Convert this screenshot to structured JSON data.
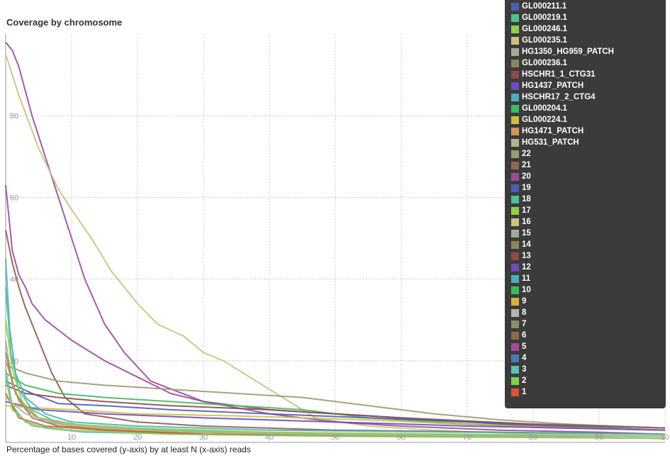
{
  "title": "Coverage by chromosome",
  "caption": "Percentage of bases covered (y-axis) by at least N (x-axis) reads",
  "chart_data": {
    "type": "line",
    "title": "Coverage by chromosome",
    "xlabel": "",
    "ylabel": "",
    "xlim": [
      0,
      100
    ],
    "ylim": [
      0,
      100
    ],
    "x_ticks": [
      "10",
      "20",
      "30",
      "40",
      "50",
      "60",
      "70",
      "80",
      "90",
      "10"
    ],
    "y_ticks": [
      "20",
      "40",
      "60",
      "80"
    ],
    "grid": true,
    "legend_position": "top-right",
    "legend": [
      {
        "label": "GL000211.1",
        "color": "#4a5fb0"
      },
      {
        "label": "GL000219.1",
        "color": "#4cc08e"
      },
      {
        "label": "GL000246.1",
        "color": "#8fd04a"
      },
      {
        "label": "GL000235.1",
        "color": "#c8c27e"
      },
      {
        "label": "HG1350_HG959_PATCH",
        "color": "#a6a89a"
      },
      {
        "label": "GL000236.1",
        "color": "#8c845e"
      },
      {
        "label": "HSCHR1_1_CTG31",
        "color": "#8d4848"
      },
      {
        "label": "HG1437_PATCH",
        "color": "#6d4cb8"
      },
      {
        "label": "HSCHR17_2_CTG4",
        "color": "#4aaebd"
      },
      {
        "label": "GL000204.1",
        "color": "#3dbb5c"
      },
      {
        "label": "GL000224.1",
        "color": "#cfbe45"
      },
      {
        "label": "HG1471_PATCH",
        "color": "#cf955a"
      },
      {
        "label": "HG531_PATCH",
        "color": "#b0b890"
      },
      {
        "label": "22",
        "color": "#9a9a72"
      },
      {
        "label": "21",
        "color": "#8d6a58"
      },
      {
        "label": "20",
        "color": "#9b4a9c"
      },
      {
        "label": "19",
        "color": "#4a5fb0"
      },
      {
        "label": "18",
        "color": "#4cc08e"
      },
      {
        "label": "17",
        "color": "#8fd04a"
      },
      {
        "label": "16",
        "color": "#c8c27e"
      },
      {
        "label": "15",
        "color": "#a6a89a"
      },
      {
        "label": "14",
        "color": "#8c845e"
      },
      {
        "label": "13",
        "color": "#8d4848"
      },
      {
        "label": "12",
        "color": "#6d4cb8"
      },
      {
        "label": "11",
        "color": "#4aaebd"
      },
      {
        "label": "10",
        "color": "#3dbb5c"
      },
      {
        "label": "9",
        "color": "#cfb53c"
      },
      {
        "label": "8",
        "color": "#b4b4a8"
      },
      {
        "label": "7",
        "color": "#8a8c6e"
      },
      {
        "label": "6",
        "color": "#8d6a48"
      },
      {
        "label": "5",
        "color": "#a34a9c"
      },
      {
        "label": "4",
        "color": "#4a7ab8"
      },
      {
        "label": "3",
        "color": "#5cc0b8"
      },
      {
        "label": "2",
        "color": "#7ed04a"
      },
      {
        "label": "1",
        "color": "#d9533c"
      }
    ],
    "series": [
      {
        "color": "#9b4a9c",
        "x": [
          0,
          1,
          2,
          4,
          6,
          8,
          10,
          12,
          15,
          18,
          22,
          30,
          40,
          50,
          60,
          70,
          80,
          100
        ],
        "y": [
          98,
          96,
          92,
          80,
          70,
          60,
          50,
          40,
          29,
          22,
          15,
          10,
          8,
          7,
          6,
          5,
          4,
          3
        ]
      },
      {
        "color": "#c8c27e",
        "x": [
          0,
          2,
          5,
          8,
          10,
          13,
          16,
          20,
          23,
          27,
          30,
          33,
          37,
          42,
          47,
          55,
          65,
          80,
          100
        ],
        "y": [
          95,
          85,
          72,
          62,
          57,
          50,
          42,
          34,
          29,
          26,
          22,
          20,
          16,
          11,
          6,
          4,
          3,
          2,
          1.5
        ]
      },
      {
        "color": "#9b4a9c",
        "x": [
          0,
          0.5,
          1,
          2,
          3,
          4,
          6,
          10,
          15,
          20,
          25,
          30,
          40,
          50,
          60,
          75,
          90,
          100
        ],
        "y": [
          63,
          55,
          47,
          41,
          38,
          34,
          30,
          25,
          20,
          16,
          12,
          10,
          7,
          5,
          4,
          3,
          2.5,
          2
        ]
      },
      {
        "color": "#8d5a48",
        "x": [
          0,
          1,
          2,
          3,
          5,
          7,
          9,
          12,
          16,
          20,
          30,
          50,
          100
        ],
        "y": [
          52,
          44,
          38,
          33,
          25,
          17,
          11,
          7,
          6,
          5,
          4,
          3,
          2
        ]
      },
      {
        "color": "#9a9a72",
        "x": [
          0,
          3,
          8,
          15,
          25,
          35,
          45,
          55,
          65,
          75,
          85,
          100
        ],
        "y": [
          19,
          17,
          15,
          14,
          13,
          12,
          11,
          9,
          7,
          5.5,
          4.5,
          3.5
        ]
      },
      {
        "color": "#3dbb5c",
        "x": [
          0,
          3,
          8,
          15,
          25,
          35,
          45,
          55,
          70,
          85,
          100
        ],
        "y": [
          17,
          14,
          12,
          11,
          10,
          9,
          8,
          6,
          4.5,
          3.5,
          3
        ]
      },
      {
        "color": "#4a5fb0",
        "x": [
          0,
          4,
          8,
          15,
          25,
          40,
          55,
          70,
          85,
          100
        ],
        "y": [
          15,
          12,
          9.5,
          9,
          8,
          7,
          6,
          5,
          4,
          3
        ]
      },
      {
        "color": "#8d4848",
        "x": [
          0,
          3,
          8,
          15,
          25,
          40,
          60,
          80,
          100
        ],
        "y": [
          14,
          12,
          11,
          10,
          9,
          8,
          6,
          4.5,
          3.5
        ]
      },
      {
        "color": "#cfbe45",
        "x": [
          0,
          4,
          10,
          20,
          35,
          55,
          75,
          100
        ],
        "y": [
          9,
          8.5,
          8,
          7,
          6.5,
          5.5,
          4,
          3
        ]
      },
      {
        "color": "#6d4cb8",
        "x": [
          0,
          5,
          15,
          30,
          50,
          70,
          100
        ],
        "y": [
          10,
          8,
          7,
          6,
          5,
          4,
          3
        ]
      },
      {
        "color": "#4aaebd",
        "x": [
          0,
          0.6,
          1.5,
          3,
          6,
          10,
          20,
          40,
          70,
          100
        ],
        "y": [
          45,
          28,
          17,
          11,
          7,
          5,
          4,
          3,
          2.5,
          2
        ]
      },
      {
        "color": "#4cc08e",
        "x": [
          0,
          0.8,
          2,
          4,
          7,
          12,
          25,
          50,
          100
        ],
        "y": [
          38,
          22,
          13,
          8,
          5.5,
          4,
          3,
          2,
          1.5
        ]
      },
      {
        "color": "#8fd04a",
        "x": [
          0,
          1,
          2.5,
          5,
          10,
          20,
          40,
          70,
          100
        ],
        "y": [
          30,
          18,
          10,
          6,
          4.5,
          3.5,
          2.5,
          2,
          1.5
        ]
      },
      {
        "color": "#a6a89a",
        "x": [
          0,
          1,
          3,
          6,
          12,
          25,
          50,
          100
        ],
        "y": [
          25,
          14,
          8,
          5,
          3.5,
          2.5,
          2,
          1
        ]
      },
      {
        "color": "#8c845e",
        "x": [
          0,
          1.5,
          4,
          8,
          15,
          30,
          60,
          100
        ],
        "y": [
          22,
          12,
          6,
          4,
          3,
          2,
          1.5,
          1
        ]
      },
      {
        "color": "#cf955a",
        "x": [
          0,
          2,
          5,
          10,
          20,
          40,
          70,
          100
        ],
        "y": [
          20,
          10,
          6,
          4,
          3,
          2,
          1.5,
          1
        ]
      },
      {
        "color": "#5cc0b8",
        "x": [
          0,
          1,
          3,
          6,
          12,
          30,
          60,
          100
        ],
        "y": [
          18,
          9,
          5,
          3.5,
          2.5,
          2,
          1.5,
          1
        ]
      },
      {
        "color": "#d9533c",
        "x": [
          0,
          2,
          6,
          15,
          30,
          60,
          100
        ],
        "y": [
          12,
          6,
          4,
          3,
          2,
          1.5,
          1
        ]
      },
      {
        "color": "#7ed04a",
        "x": [
          0,
          1,
          4,
          10,
          25,
          50,
          100
        ],
        "y": [
          16,
          8,
          4,
          3,
          2,
          1.5,
          1
        ]
      },
      {
        "color": "#b0b890",
        "x": [
          0,
          3,
          8,
          20,
          45,
          100
        ],
        "y": [
          11,
          7,
          4.5,
          3,
          2,
          1
        ]
      }
    ]
  }
}
